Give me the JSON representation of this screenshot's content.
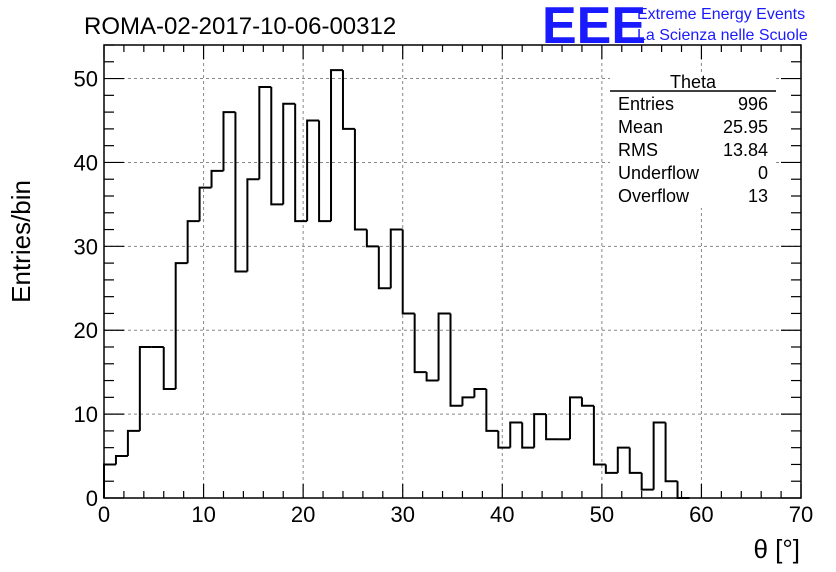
{
  "header": {
    "run_title": "ROMA-02-2017-10-06-00312",
    "logo_text": "EEE",
    "logo_line1": "Extreme Energy Events",
    "logo_line2": "La Scienza nelle Scuole"
  },
  "stats": {
    "title": "Theta",
    "rows": [
      {
        "label": "Entries",
        "value": "996"
      },
      {
        "label": "Mean",
        "value": "25.95"
      },
      {
        "label": "RMS",
        "value": "13.84"
      },
      {
        "label": "Underflow",
        "value": "0"
      },
      {
        "label": "Overflow",
        "value": "13"
      }
    ]
  },
  "colors": {
    "line": "#000000",
    "grid": "#888888",
    "logo": "#1a1aff"
  },
  "chart_data": {
    "type": "bar",
    "histogram": true,
    "title": "",
    "xlabel": "θ [°]",
    "ylabel": "Entries/bin",
    "xlim": [
      0,
      70
    ],
    "ylim": [
      0,
      54
    ],
    "x_ticks": [
      0,
      10,
      20,
      30,
      40,
      50,
      60,
      70
    ],
    "y_ticks": [
      0,
      10,
      20,
      30,
      40,
      50
    ],
    "grid": true,
    "bin_width": 1.2,
    "bin_start": 0,
    "values": [
      4,
      5,
      8,
      18,
      18,
      13,
      28,
      33,
      37,
      39,
      46,
      27,
      38,
      49,
      35,
      47,
      33,
      45,
      33,
      51,
      44,
      32,
      30,
      25,
      32,
      22,
      15,
      14,
      22,
      11,
      12,
      13,
      8,
      6,
      9,
      6,
      10,
      7,
      7,
      12,
      11,
      4,
      3,
      6,
      3,
      1,
      9,
      2,
      0
    ]
  }
}
